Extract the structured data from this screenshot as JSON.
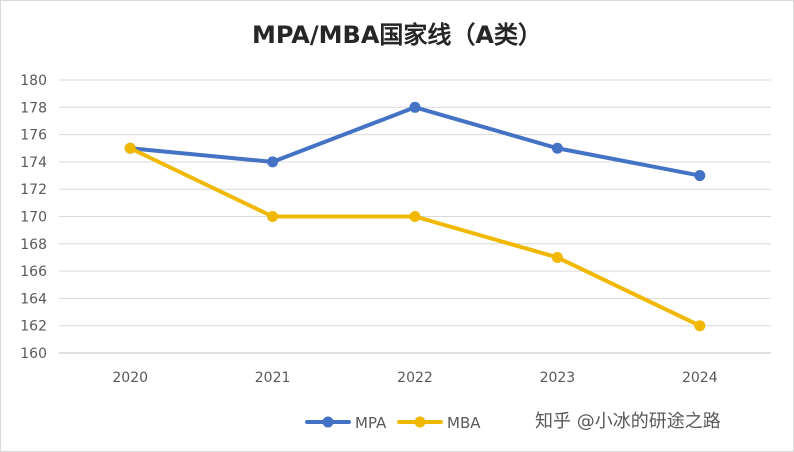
{
  "chart_data": {
    "type": "line",
    "title": "MPA/MBA国家线（A类）",
    "categories": [
      "2020",
      "2021",
      "2022",
      "2023",
      "2024"
    ],
    "series": [
      {
        "name": "MPA",
        "color": "#4472c4",
        "values": [
          175,
          174,
          178,
          175,
          173
        ]
      },
      {
        "name": "MBA",
        "color": "#f0b800",
        "values": [
          175,
          170,
          170,
          167,
          162
        ]
      }
    ],
    "ylim": [
      160,
      180
    ],
    "ytick_step": 2,
    "yticks": [
      "160",
      "162",
      "164",
      "166",
      "168",
      "170",
      "172",
      "174",
      "176",
      "178",
      "180"
    ],
    "grid": true,
    "legend": "bottom",
    "xlabel": "",
    "ylabel": ""
  },
  "watermark": "知乎 @小冰的研途之路"
}
